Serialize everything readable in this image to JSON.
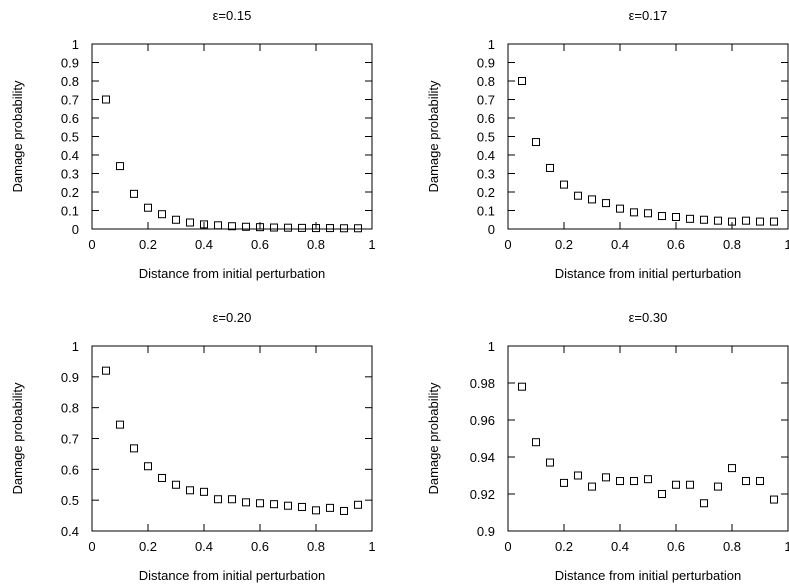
{
  "chart_data": [
    {
      "type": "scatter",
      "title": "ε=0.15",
      "xlabel": "Distance from initial perturbation",
      "ylabel": "Damage probability",
      "xlim": [
        0,
        1
      ],
      "ylim": [
        0,
        1
      ],
      "xticks": [
        0,
        0.2,
        0.4,
        0.6,
        0.8,
        1
      ],
      "xtick_labels": [
        "0",
        "0.2",
        "0.4",
        "0.6",
        "0.8",
        "1"
      ],
      "yticks": [
        0,
        0.1,
        0.2,
        0.3,
        0.4,
        0.5,
        0.6,
        0.7,
        0.8,
        0.9,
        1
      ],
      "ytick_labels": [
        "0",
        "0.1",
        "0.2",
        "0.3",
        "0.4",
        "0.5",
        "0.6",
        "0.7",
        "0.8",
        "0.9",
        "1"
      ],
      "grid": false,
      "marker": "open-square",
      "x": [
        0.05,
        0.1,
        0.15,
        0.2,
        0.25,
        0.3,
        0.35,
        0.4,
        0.45,
        0.5,
        0.55,
        0.6,
        0.65,
        0.7,
        0.75,
        0.8,
        0.85,
        0.9,
        0.95
      ],
      "y": [
        0.7,
        0.34,
        0.19,
        0.115,
        0.08,
        0.05,
        0.035,
        0.025,
        0.02,
        0.015,
        0.012,
        0.01,
        0.008,
        0.007,
        0.006,
        0.005,
        0.005,
        0.004,
        0.004
      ]
    },
    {
      "type": "scatter",
      "title": "ε=0.17",
      "xlabel": "Distance from initial perturbation",
      "ylabel": "Damage probability",
      "xlim": [
        0,
        1
      ],
      "ylim": [
        0,
        1
      ],
      "xticks": [
        0,
        0.2,
        0.4,
        0.6,
        0.8,
        1
      ],
      "xtick_labels": [
        "0",
        "0.2",
        "0.4",
        "0.6",
        "0.8",
        "1"
      ],
      "yticks": [
        0,
        0.1,
        0.2,
        0.3,
        0.4,
        0.5,
        0.6,
        0.7,
        0.8,
        0.9,
        1
      ],
      "ytick_labels": [
        "0",
        "0.1",
        "0.2",
        "0.3",
        "0.4",
        "0.5",
        "0.6",
        "0.7",
        "0.8",
        "0.9",
        "1"
      ],
      "grid": false,
      "marker": "open-square",
      "x": [
        0.05,
        0.1,
        0.15,
        0.2,
        0.25,
        0.3,
        0.35,
        0.4,
        0.45,
        0.5,
        0.55,
        0.6,
        0.65,
        0.7,
        0.75,
        0.8,
        0.85,
        0.9,
        0.95
      ],
      "y": [
        0.8,
        0.47,
        0.33,
        0.24,
        0.18,
        0.16,
        0.14,
        0.11,
        0.09,
        0.085,
        0.07,
        0.065,
        0.055,
        0.05,
        0.045,
        0.04,
        0.045,
        0.04,
        0.04
      ]
    },
    {
      "type": "scatter",
      "title": "ε=0.20",
      "xlabel": "Distance from initial perturbation",
      "ylabel": "Damage probability",
      "xlim": [
        0,
        1
      ],
      "ylim": [
        0.4,
        1
      ],
      "xticks": [
        0,
        0.2,
        0.4,
        0.6,
        0.8,
        1
      ],
      "xtick_labels": [
        "0",
        "0.2",
        "0.4",
        "0.6",
        "0.8",
        "1"
      ],
      "yticks": [
        0.4,
        0.5,
        0.6,
        0.7,
        0.8,
        0.9,
        1
      ],
      "ytick_labels": [
        "0.4",
        "0.5",
        "0.6",
        "0.7",
        "0.8",
        "0.9",
        "1"
      ],
      "grid": false,
      "marker": "open-square",
      "x": [
        0.05,
        0.1,
        0.15,
        0.2,
        0.25,
        0.3,
        0.35,
        0.4,
        0.45,
        0.5,
        0.55,
        0.6,
        0.65,
        0.7,
        0.75,
        0.8,
        0.85,
        0.9,
        0.95
      ],
      "y": [
        0.92,
        0.745,
        0.668,
        0.61,
        0.572,
        0.55,
        0.532,
        0.527,
        0.503,
        0.503,
        0.493,
        0.49,
        0.487,
        0.482,
        0.478,
        0.467,
        0.475,
        0.465,
        0.485
      ]
    },
    {
      "type": "scatter",
      "title": "ε=0.30",
      "xlabel": "Distance from initial perturbation",
      "ylabel": "Damage probability",
      "xlim": [
        0,
        1
      ],
      "ylim": [
        0.9,
        1
      ],
      "xticks": [
        0,
        0.2,
        0.4,
        0.6,
        0.8,
        1
      ],
      "xtick_labels": [
        "0",
        "0.2",
        "0.4",
        "0.6",
        "0.8",
        "1"
      ],
      "yticks": [
        0.9,
        0.92,
        0.94,
        0.96,
        0.98,
        1
      ],
      "ytick_labels": [
        "0.9",
        "0.92",
        "0.94",
        "0.96",
        "0.98",
        "1"
      ],
      "grid": false,
      "marker": "open-square",
      "x": [
        0.05,
        0.1,
        0.15,
        0.2,
        0.25,
        0.3,
        0.35,
        0.4,
        0.45,
        0.5,
        0.55,
        0.6,
        0.65,
        0.7,
        0.75,
        0.8,
        0.85,
        0.9,
        0.95
      ],
      "y": [
        0.978,
        0.948,
        0.937,
        0.926,
        0.93,
        0.924,
        0.929,
        0.927,
        0.927,
        0.928,
        0.92,
        0.925,
        0.925,
        0.915,
        0.924,
        0.934,
        0.927,
        0.927,
        0.917
      ]
    }
  ]
}
